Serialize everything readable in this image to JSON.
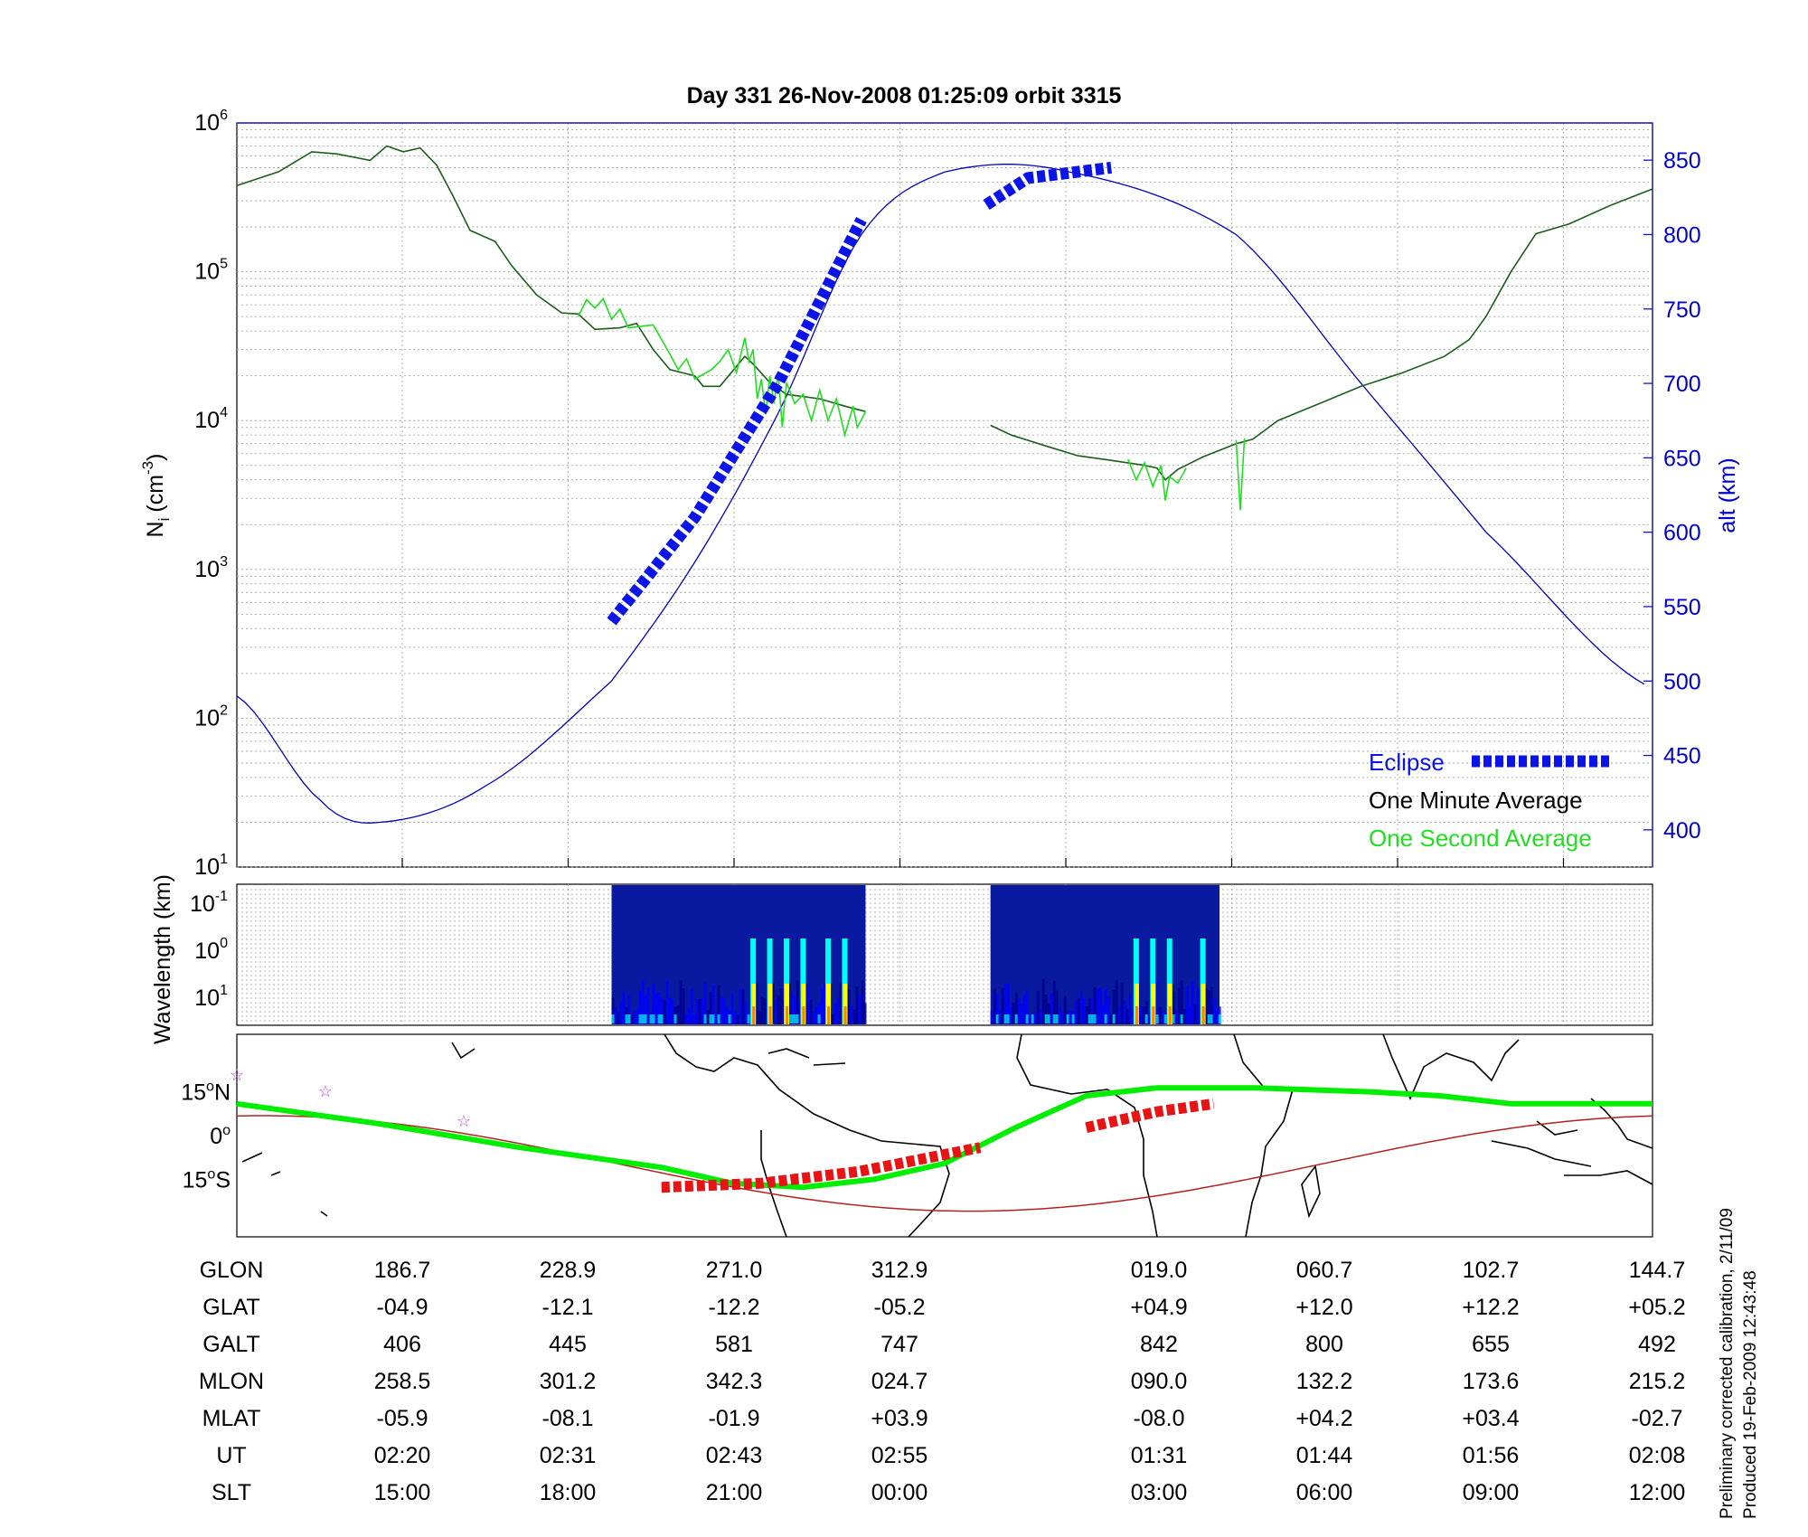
{
  "title": "Day 331  26-Nov-2008 01:25:09   orbit 3315",
  "chart_data": [
    {
      "type": "line",
      "title": "Day 331  26-Nov-2008 01:25:09   orbit 3315",
      "x_ticks": [
        "186.7",
        "228.9",
        "271.0",
        "312.9",
        "019.0",
        "060.7",
        "102.7",
        "144.7"
      ],
      "y_left": {
        "label_main": "N",
        "label_sub": "i",
        "label_unit": "(cm",
        "label_exp": "-3",
        "label_close": ")",
        "scale": "log",
        "range": [
          10,
          1000000
        ],
        "tick_exponents": [
          "1",
          "2",
          "3",
          "4",
          "5",
          "6"
        ],
        "tick_base": "10"
      },
      "y_right": {
        "label": "alt (km)",
        "range": [
          375,
          875
        ],
        "ticks": [
          400,
          450,
          500,
          550,
          600,
          650,
          700,
          750,
          800,
          850
        ],
        "color": "#0000cc"
      },
      "grid": true,
      "legend_position": "bottom-right",
      "legend": {
        "eclipse": "Eclipse",
        "minute": "One Minute Average",
        "second": "One Second Average"
      },
      "colors": {
        "altitude": "#0000bb",
        "eclipse": "#0a14e6",
        "minute": "#1a5e1a",
        "second": "#22dd22"
      },
      "series": [
        {
          "name": "One Minute Average",
          "segments": [
            [
              [
                0,
                380000
              ],
              [
                0.05,
                470000
              ],
              [
                0.09,
                640000
              ],
              [
                0.12,
                620000
              ],
              [
                0.16,
                560000
              ],
              [
                0.18,
                700000
              ],
              [
                0.2,
                640000
              ],
              [
                0.22,
                680000
              ],
              [
                0.24,
                520000
              ],
              [
                0.26,
                320000
              ],
              [
                0.28,
                190000
              ],
              [
                0.31,
                160000
              ],
              [
                0.33,
                110000
              ],
              [
                0.36,
                70000
              ],
              [
                0.39,
                53000
              ],
              [
                0.41,
                52000
              ],
              [
                0.43,
                41000
              ],
              [
                0.46,
                42000
              ],
              [
                0.48,
                45000
              ],
              [
                0.5,
                30000
              ],
              [
                0.52,
                22000
              ],
              [
                0.55,
                20000
              ],
              [
                0.56,
                17000
              ],
              [
                0.58,
                17000
              ],
              [
                0.61,
                27000
              ],
              [
                0.62,
                24000
              ],
              [
                0.64,
                18000
              ],
              [
                0.66,
                15000
              ],
              [
                0.7,
                14000
              ],
              [
                0.73,
                12500
              ],
              [
                0.755,
                11500
              ]
            ],
            [
              [
                0.905,
                9300
              ],
              [
                0.93,
                8000
              ],
              [
                0.97,
                6800
              ],
              [
                1.01,
                5800
              ],
              [
                1.05,
                5400
              ],
              [
                1.09,
                5000
              ],
              [
                1.105,
                4800
              ],
              [
                1.115,
                4000
              ],
              [
                1.13,
                4700
              ],
              [
                1.16,
                5700
              ],
              [
                1.2,
                7000
              ],
              [
                1.22,
                7500
              ],
              [
                1.25,
                10000
              ],
              [
                1.3,
                13000
              ],
              [
                1.35,
                17000
              ],
              [
                1.4,
                21000
              ],
              [
                1.45,
                27000
              ],
              [
                1.48,
                35000
              ],
              [
                1.5,
                50000
              ],
              [
                1.53,
                100000
              ],
              [
                1.56,
                180000
              ],
              [
                1.6,
                210000
              ],
              [
                1.65,
                280000
              ],
              [
                1.7,
                360000
              ]
            ]
          ]
        },
        {
          "name": "One Second Average",
          "segments": [
            [
              [
                0.41,
                50000
              ],
              [
                0.42,
                65000
              ],
              [
                0.43,
                57000
              ],
              [
                0.44,
                66000
              ],
              [
                0.45,
                48000
              ],
              [
                0.46,
                56000
              ],
              [
                0.47,
                42000
              ],
              [
                0.5,
                44000
              ],
              [
                0.52,
                28000
              ],
              [
                0.53,
                22000
              ],
              [
                0.54,
                26000
              ],
              [
                0.55,
                19000
              ],
              [
                0.57,
                22000
              ],
              [
                0.58,
                25000
              ],
              [
                0.59,
                30000
              ],
              [
                0.6,
                21000
              ],
              [
                0.61,
                36000
              ],
              [
                0.615,
                25000
              ],
              [
                0.62,
                30000
              ],
              [
                0.625,
                14000
              ],
              [
                0.63,
                19000
              ],
              [
                0.635,
                11000
              ],
              [
                0.64,
                20000
              ],
              [
                0.645,
                13000
              ],
              [
                0.65,
                21000
              ],
              [
                0.655,
                9000
              ],
              [
                0.66,
                18000
              ],
              [
                0.67,
                13000
              ],
              [
                0.68,
                15000
              ],
              [
                0.69,
                10000
              ],
              [
                0.7,
                16000
              ],
              [
                0.71,
                10000
              ],
              [
                0.72,
                14000
              ],
              [
                0.73,
                8000
              ],
              [
                0.74,
                12500
              ],
              [
                0.745,
                9000
              ],
              [
                0.755,
                11500
              ]
            ],
            [
              [
                1.07,
                5500
              ],
              [
                1.08,
                4000
              ],
              [
                1.09,
                5200
              ],
              [
                1.1,
                3600
              ],
              [
                1.11,
                5000
              ],
              [
                1.115,
                2900
              ],
              [
                1.12,
                4200
              ],
              [
                1.13,
                3800
              ],
              [
                1.14,
                4800
              ]
            ],
            [
              [
                1.2,
                7400
              ],
              [
                1.205,
                2500
              ],
              [
                1.21,
                7600
              ]
            ]
          ]
        },
        {
          "name": "alt (km)",
          "values": [
            [
              0,
              490
            ],
            [
              0.1,
              420
            ],
            [
              0.17,
              405
            ],
            [
              0.3,
              430
            ],
            [
              0.45,
              500
            ],
            [
              0.55,
              580
            ],
            [
              0.65,
              680
            ],
            [
              0.75,
              800
            ],
            [
              0.85,
              842
            ],
            [
              1.0,
              842
            ],
            [
              1.2,
              800
            ],
            [
              1.35,
              700
            ],
            [
              1.5,
              600
            ],
            [
              1.7,
              495
            ]
          ]
        },
        {
          "name": "Eclipse",
          "segments": [
            [
              [
                0.45,
                540
              ],
              [
                0.55,
                610
              ],
              [
                0.65,
                700
              ],
              [
                0.75,
                810
              ]
            ],
            [
              [
                0.9,
                820
              ],
              [
                0.95,
                838
              ],
              [
                1.05,
                845
              ]
            ]
          ]
        }
      ]
    },
    {
      "type": "heatmap",
      "y_label": "Wavelength (km)",
      "y_ticks": [
        {
          "base": "10",
          "exp": "-1"
        },
        {
          "base": "10",
          "exp": "0"
        },
        {
          "base": "10",
          "exp": "1"
        }
      ],
      "blocks": [
        {
          "x_start": 0.45,
          "x_end": 0.755
        },
        {
          "x_start": 0.905,
          "x_end": 1.18
        }
      ],
      "colormap": [
        "#00008f",
        "#0000ff",
        "#00ffff",
        "#ffff00",
        "#ff8000",
        "#8f0000"
      ]
    },
    {
      "type": "map",
      "lat_labels": [
        {
          "deg": "15",
          "sym": "o",
          "hemi": "N"
        },
        {
          "deg": "0",
          "sym": "o",
          "hemi": ""
        },
        {
          "deg": "15",
          "sym": "o",
          "hemi": "S"
        }
      ],
      "colors": {
        "track": "#00ee00",
        "magnetic": "#b22222",
        "eclipse": "#e61414",
        "stars": "#cc44cc"
      }
    }
  ],
  "table": {
    "rows": [
      {
        "label": "GLON",
        "values": [
          "186.7",
          "228.9",
          "271.0",
          "312.9",
          "019.0",
          "060.7",
          "102.7",
          "144.7"
        ]
      },
      {
        "label": "GLAT",
        "values": [
          "-04.9",
          "-12.1",
          "-12.2",
          "-05.2",
          "+04.9",
          "+12.0",
          "+12.2",
          "+05.2"
        ]
      },
      {
        "label": "GALT",
        "values": [
          "406",
          "445",
          "581",
          "747",
          "842",
          "800",
          "655",
          "492"
        ]
      },
      {
        "label": "MLON",
        "values": [
          "258.5",
          "301.2",
          "342.3",
          "024.7",
          "090.0",
          "132.2",
          "173.6",
          "215.2"
        ]
      },
      {
        "label": "MLAT",
        "values": [
          "-05.9",
          "-08.1",
          "-01.9",
          "+03.9",
          "-08.0",
          "+04.2",
          "+03.4",
          "-02.7"
        ]
      },
      {
        "label": "UT",
        "values": [
          "02:20",
          "02:31",
          "02:43",
          "02:55",
          "01:31",
          "01:44",
          "01:56",
          "02:08"
        ]
      },
      {
        "label": "SLT",
        "values": [
          "15:00",
          "18:00",
          "21:00",
          "00:00",
          "03:00",
          "06:00",
          "09:00",
          "12:00"
        ]
      }
    ]
  },
  "footer": {
    "line1": "Preliminary corrected calibration, 2/11/09",
    "line2": "Produced 19-Feb-2009 12:43:48"
  }
}
